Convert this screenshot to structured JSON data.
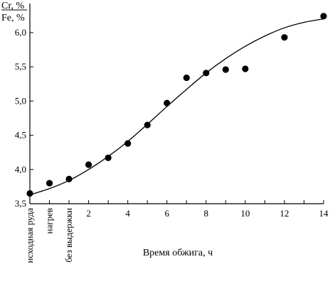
{
  "chart_data": {
    "type": "scatter",
    "title": "",
    "ylabel_lines": [
      "Cr, %",
      "Fe, %"
    ],
    "xlabel": "Время обжига, ч",
    "xlim": [
      -1,
      14
    ],
    "ylim": [
      3.5,
      6.3
    ],
    "x_ticks": [
      2,
      4,
      6,
      8,
      10,
      12,
      14
    ],
    "x_tick_labels": [
      "2",
      "4",
      "6",
      "8",
      "10",
      "12",
      "14"
    ],
    "y_ticks": [
      3.5,
      4.0,
      4.5,
      5.0,
      5.5,
      6.0
    ],
    "y_tick_labels": [
      "3,5",
      "4,0",
      "4,5",
      "5,0",
      "5,5",
      "6,0"
    ],
    "x_category_labels": [
      {
        "x": -1,
        "text": "исходная руда"
      },
      {
        "x": 0,
        "text": "нагрев"
      },
      {
        "x": 1,
        "text": "без выдержки"
      }
    ],
    "series": [
      {
        "points": [
          {
            "x": -1,
            "y": 3.65
          },
          {
            "x": 0,
            "y": 3.8
          },
          {
            "x": 1,
            "y": 3.86
          },
          {
            "x": 2,
            "y": 4.07
          },
          {
            "x": 3,
            "y": 4.17
          },
          {
            "x": 4,
            "y": 4.38
          },
          {
            "x": 5,
            "y": 4.65
          },
          {
            "x": 6,
            "y": 4.97
          },
          {
            "x": 7,
            "y": 5.34
          },
          {
            "x": 8,
            "y": 5.41
          },
          {
            "x": 9,
            "y": 5.46
          },
          {
            "x": 10,
            "y": 5.47
          },
          {
            "x": 12,
            "y": 5.93
          },
          {
            "x": 14,
            "y": 6.24
          }
        ]
      }
    ],
    "trendline": {
      "type": "sigmoid",
      "points": [
        {
          "x": -1,
          "y": 3.63
        },
        {
          "x": 0,
          "y": 3.72
        },
        {
          "x": 1,
          "y": 3.84
        },
        {
          "x": 2,
          "y": 4.0
        },
        {
          "x": 3,
          "y": 4.19
        },
        {
          "x": 4,
          "y": 4.41
        },
        {
          "x": 5,
          "y": 4.66
        },
        {
          "x": 6,
          "y": 4.92
        },
        {
          "x": 7,
          "y": 5.17
        },
        {
          "x": 8,
          "y": 5.41
        },
        {
          "x": 9,
          "y": 5.62
        },
        {
          "x": 10,
          "y": 5.8
        },
        {
          "x": 11,
          "y": 5.95
        },
        {
          "x": 12,
          "y": 6.07
        },
        {
          "x": 13,
          "y": 6.15
        },
        {
          "x": 14,
          "y": 6.2
        }
      ]
    },
    "grid": false,
    "legend": "none"
  }
}
